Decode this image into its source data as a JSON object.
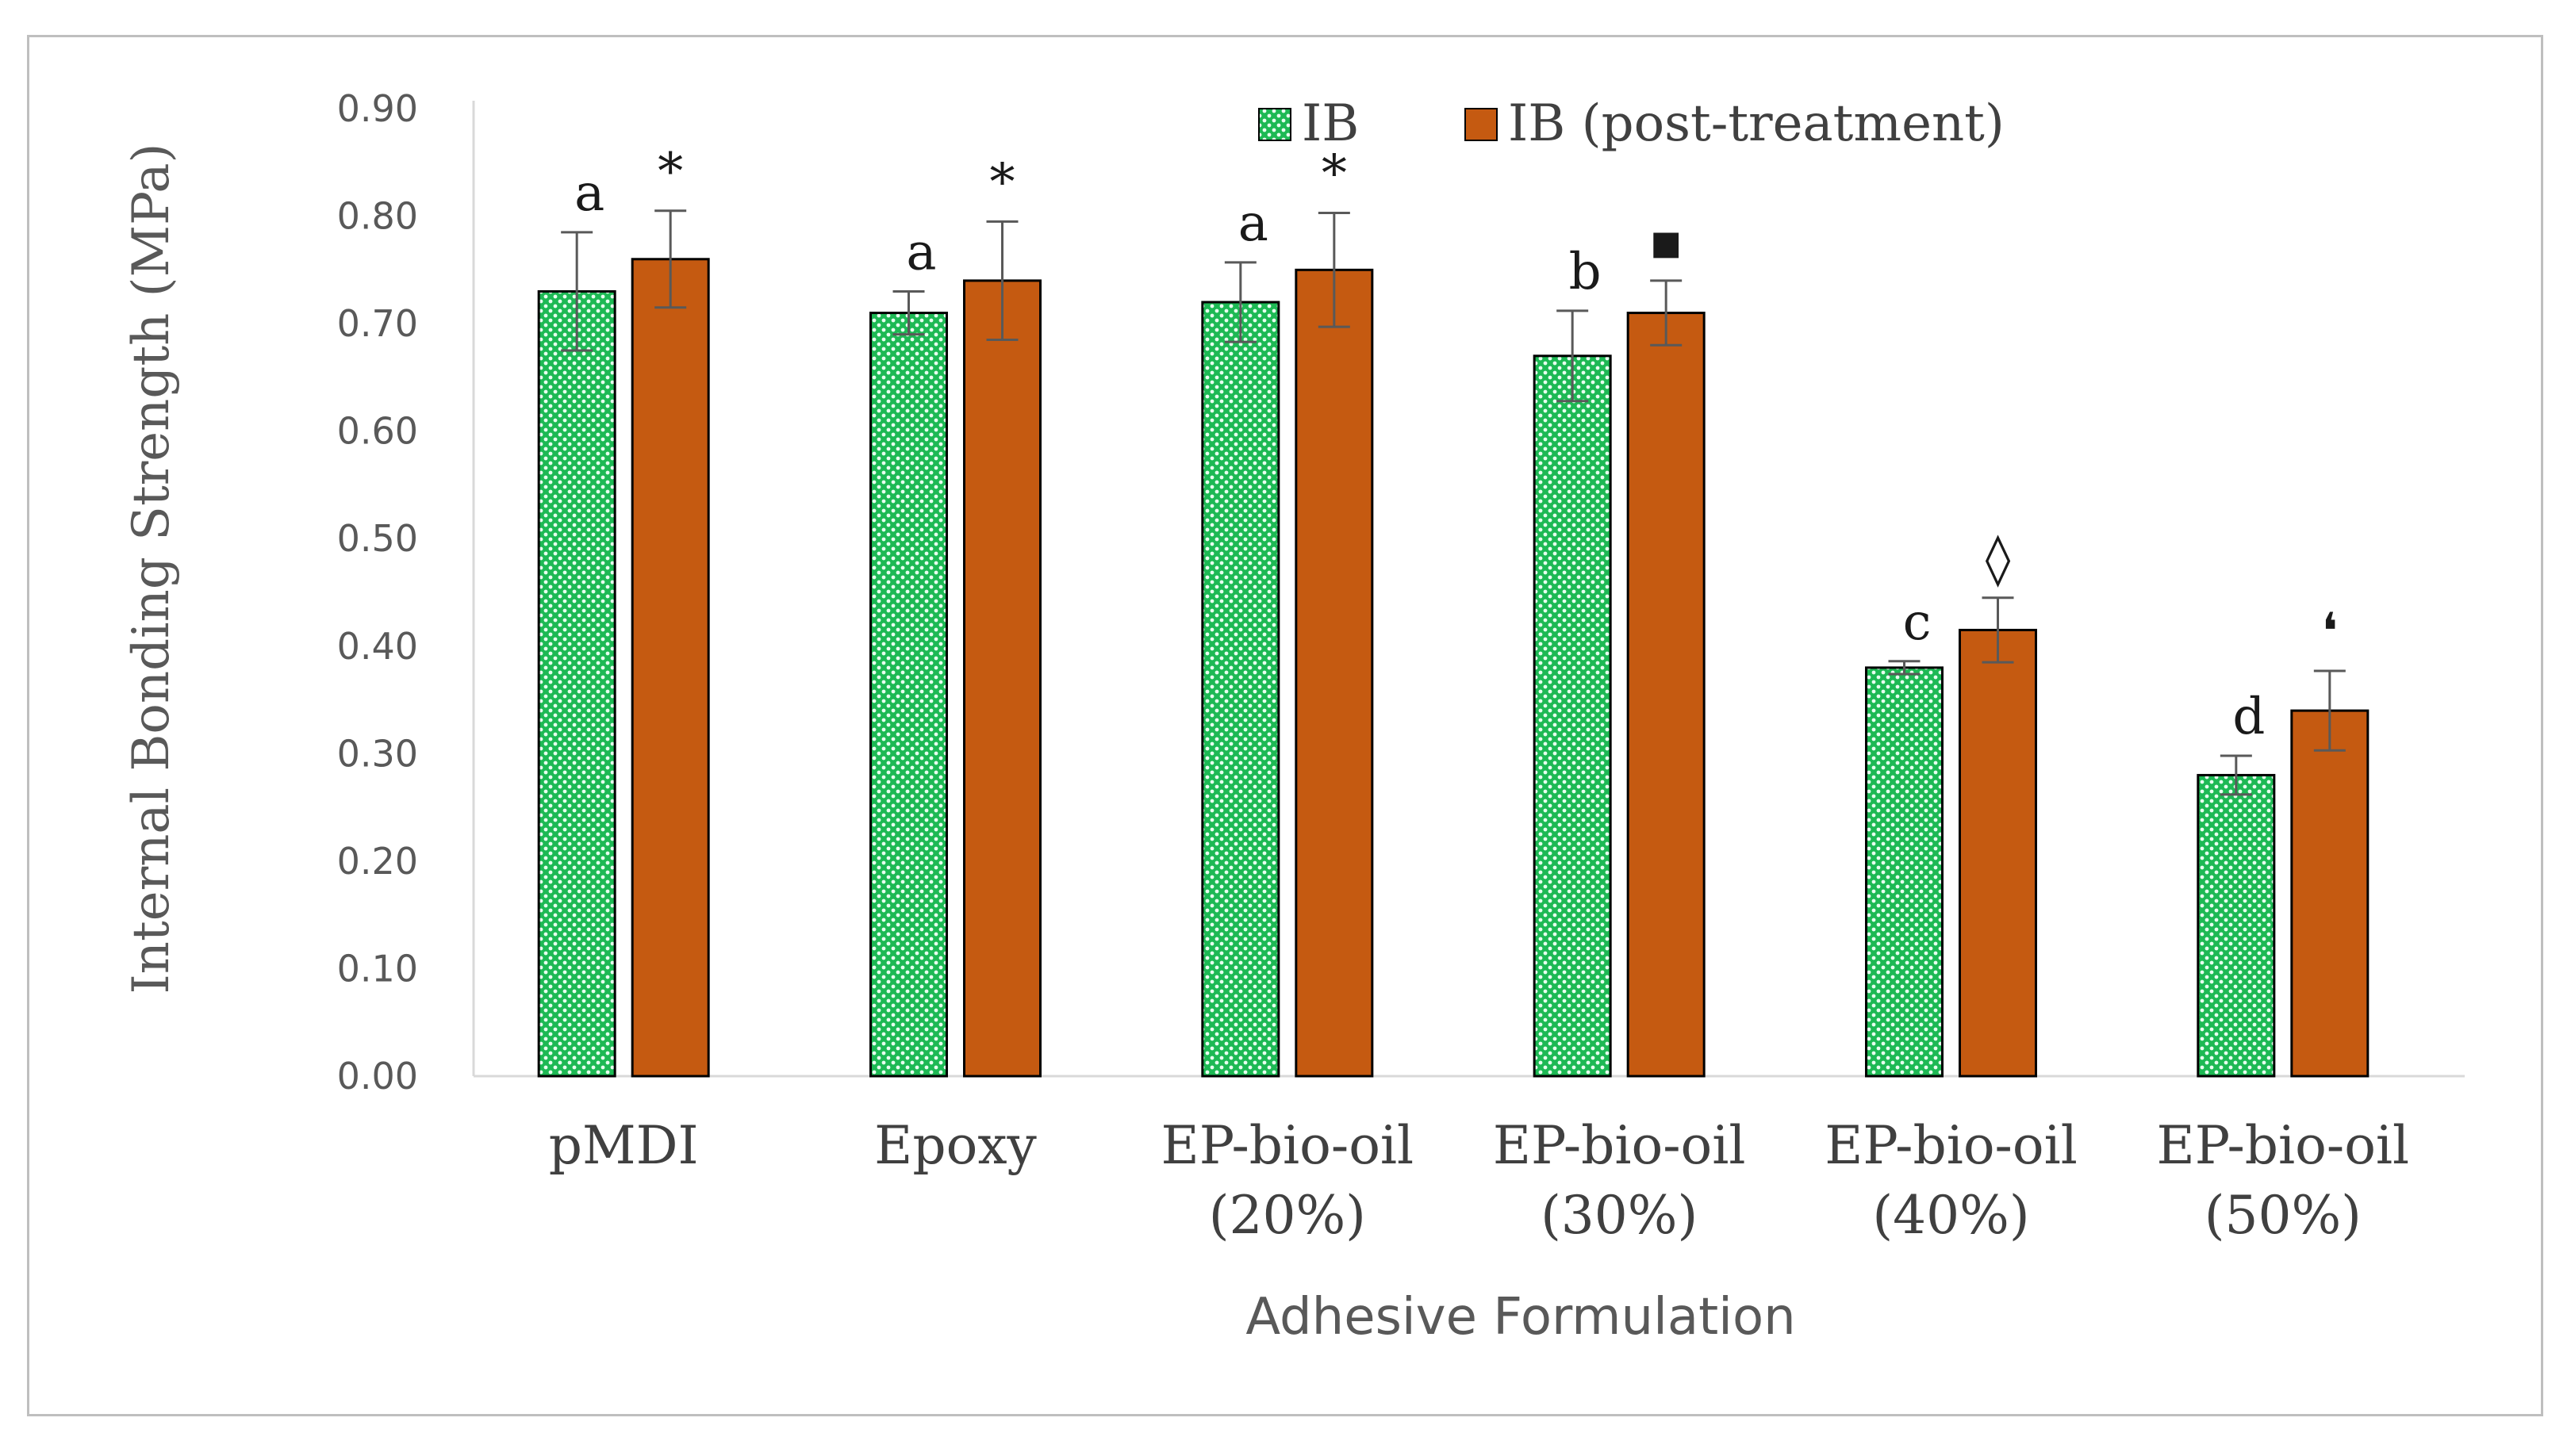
{
  "chart_data": {
    "type": "bar",
    "title": "",
    "xlabel": "Adhesive Formulation",
    "ylabel": "Internal Bonding Strength (MPa)",
    "ylim": [
      0,
      0.9
    ],
    "yticks": [
      "0.00",
      "0.10",
      "0.20",
      "0.30",
      "0.40",
      "0.50",
      "0.60",
      "0.70",
      "0.80",
      "0.90"
    ],
    "categories": [
      [
        "pMDI"
      ],
      [
        "Epoxy"
      ],
      [
        "EP-bio-oil",
        "(20%)"
      ],
      [
        "EP-bio-oil",
        "(30%)"
      ],
      [
        "EP-bio-oil",
        "(40%)"
      ],
      [
        "EP-bio-oil",
        "(50%)"
      ]
    ],
    "legend_position": "top-right",
    "grid": false,
    "series": [
      {
        "name": "IB",
        "color": "#1db954",
        "pattern": "dotted-green",
        "values": [
          0.73,
          0.71,
          0.72,
          0.67,
          0.38,
          0.28
        ],
        "errors": [
          0.055,
          0.02,
          0.037,
          0.042,
          0.006,
          0.018
        ],
        "labels": [
          "a",
          "a",
          "a",
          "b",
          "c",
          "d"
        ]
      },
      {
        "name": "IB (post-treatment)",
        "color": "#c55a11",
        "pattern": "solid",
        "values": [
          0.76,
          0.74,
          0.75,
          0.71,
          0.415,
          0.34
        ],
        "errors": [
          0.045,
          0.055,
          0.053,
          0.03,
          0.03,
          0.037
        ],
        "labels": [
          "*",
          "*",
          "*",
          "▪",
          "◊",
          "❛"
        ]
      }
    ]
  }
}
